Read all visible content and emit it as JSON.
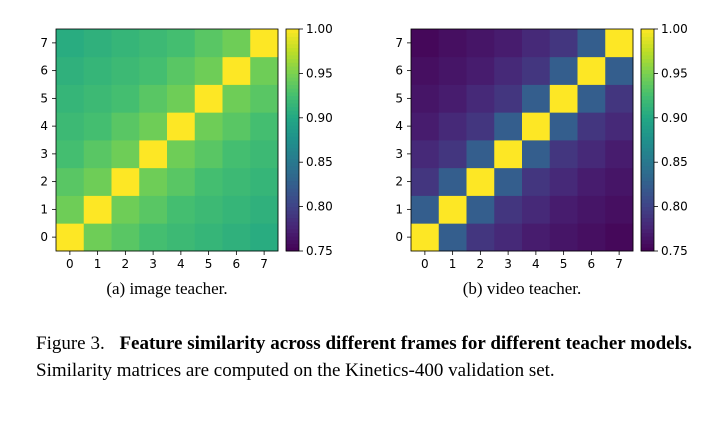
{
  "chart_data": [
    {
      "type": "heatmap",
      "subcaption": "(a) image teacher.",
      "x_ticks": [
        "0",
        "1",
        "2",
        "3",
        "4",
        "5",
        "6",
        "7"
      ],
      "y_ticks": [
        "0",
        "1",
        "2",
        "3",
        "4",
        "5",
        "6",
        "7"
      ],
      "colormap": "viridis",
      "vmin": 0.75,
      "vmax": 1.0,
      "colorbar_ticks": [
        "0.75",
        "0.80",
        "0.85",
        "0.90",
        "0.95",
        "1.00"
      ],
      "colorbar_values": [
        0.75,
        0.8,
        0.85,
        0.9,
        0.95,
        1.0
      ],
      "matrix_rows_from_y0": [
        [
          1.0,
          0.945,
          0.935,
          0.925,
          0.92,
          0.915,
          0.91,
          0.905
        ],
        [
          0.945,
          1.0,
          0.945,
          0.935,
          0.925,
          0.92,
          0.915,
          0.91
        ],
        [
          0.935,
          0.945,
          1.0,
          0.945,
          0.935,
          0.925,
          0.92,
          0.915
        ],
        [
          0.925,
          0.935,
          0.945,
          1.0,
          0.945,
          0.935,
          0.925,
          0.92
        ],
        [
          0.92,
          0.925,
          0.935,
          0.945,
          1.0,
          0.945,
          0.935,
          0.925
        ],
        [
          0.915,
          0.92,
          0.925,
          0.935,
          0.945,
          1.0,
          0.945,
          0.935
        ],
        [
          0.91,
          0.915,
          0.92,
          0.925,
          0.935,
          0.945,
          1.0,
          0.945
        ],
        [
          0.905,
          0.91,
          0.915,
          0.92,
          0.925,
          0.935,
          0.945,
          1.0
        ]
      ]
    },
    {
      "type": "heatmap",
      "subcaption": "(b) video teacher.",
      "x_ticks": [
        "0",
        "1",
        "2",
        "3",
        "4",
        "5",
        "6",
        "7"
      ],
      "y_ticks": [
        "0",
        "1",
        "2",
        "3",
        "4",
        "5",
        "6",
        "7"
      ],
      "colormap": "viridis",
      "vmin": 0.75,
      "vmax": 1.0,
      "colorbar_ticks": [
        "0.75",
        "0.80",
        "0.85",
        "0.90",
        "0.95",
        "1.00"
      ],
      "colorbar_values": [
        0.75,
        0.8,
        0.85,
        0.9,
        0.95,
        1.0
      ],
      "matrix_rows_from_y0": [
        [
          1.0,
          0.825,
          0.79,
          0.78,
          0.77,
          0.765,
          0.76,
          0.755
        ],
        [
          0.825,
          1.0,
          0.825,
          0.79,
          0.78,
          0.77,
          0.765,
          0.76
        ],
        [
          0.79,
          0.825,
          1.0,
          0.825,
          0.79,
          0.78,
          0.77,
          0.765
        ],
        [
          0.78,
          0.79,
          0.825,
          1.0,
          0.825,
          0.79,
          0.78,
          0.77
        ],
        [
          0.77,
          0.78,
          0.79,
          0.825,
          1.0,
          0.825,
          0.79,
          0.78
        ],
        [
          0.765,
          0.77,
          0.78,
          0.79,
          0.825,
          1.0,
          0.825,
          0.79
        ],
        [
          0.76,
          0.765,
          0.77,
          0.78,
          0.79,
          0.825,
          1.0,
          0.825
        ],
        [
          0.755,
          0.76,
          0.765,
          0.77,
          0.78,
          0.79,
          0.825,
          1.0
        ]
      ]
    }
  ],
  "caption": {
    "label": "Figure 3.",
    "bold": "Feature similarity across different frames for different teacher models.",
    "text": "Similarity matrices are computed on the Kinetics-400 validation set."
  }
}
